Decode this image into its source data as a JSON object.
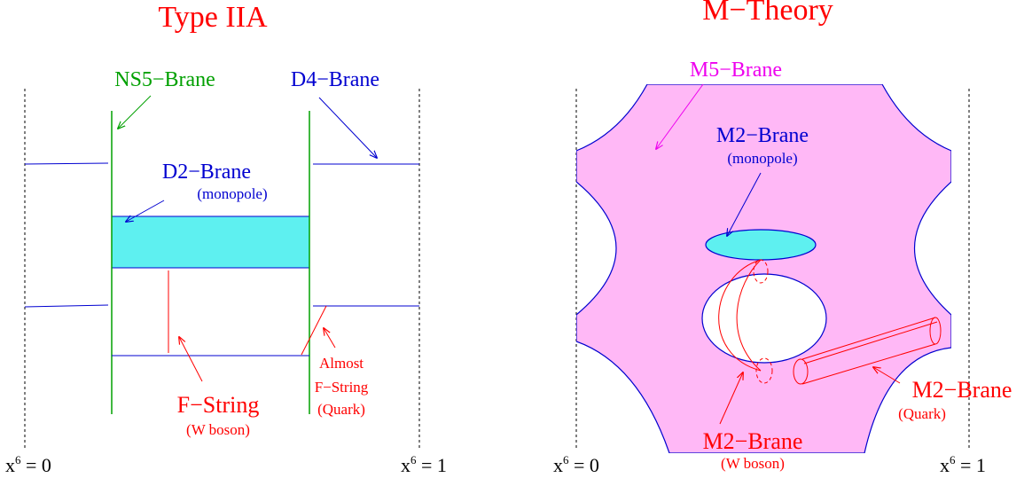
{
  "colors": {
    "red": "#ff0000",
    "green": "#00a000",
    "blue": "#0000d0",
    "magenta": "#ee00ee",
    "cyan": "#5ef0f0",
    "pink": "#ffb8f6",
    "black": "#000000"
  },
  "left": {
    "title": "Type IIA",
    "ns5_label": "NS5−Brane",
    "d4_label": "D4−Brane",
    "d2_label": "D2−Brane",
    "d2_sub": "(monopole)",
    "fstring_label": "F−String",
    "fstring_sub": "(W boson)",
    "almost_line1": "Almost",
    "almost_line2": "F−String",
    "almost_line3": "(Quark)",
    "axis_left": {
      "base": "x",
      "sup": "6",
      "rest": " = 0"
    },
    "axis_right": {
      "base": "x",
      "sup": "6",
      "rest": " = 1"
    }
  },
  "right": {
    "title": "M−Theory",
    "m5_label": "M5−Brane",
    "m2_mono_label": "M2−Brane",
    "m2_mono_sub": "(monopole)",
    "m2_w_label": "M2−Brane",
    "m2_w_sub": "(W boson)",
    "m2_q_label": "M2−Brane",
    "m2_q_sub": "(Quark)",
    "axis_left": {
      "base": "x",
      "sup": "6",
      "rest": " = 0"
    },
    "axis_right": {
      "base": "x",
      "sup": "6",
      "rest": " = 1"
    }
  }
}
